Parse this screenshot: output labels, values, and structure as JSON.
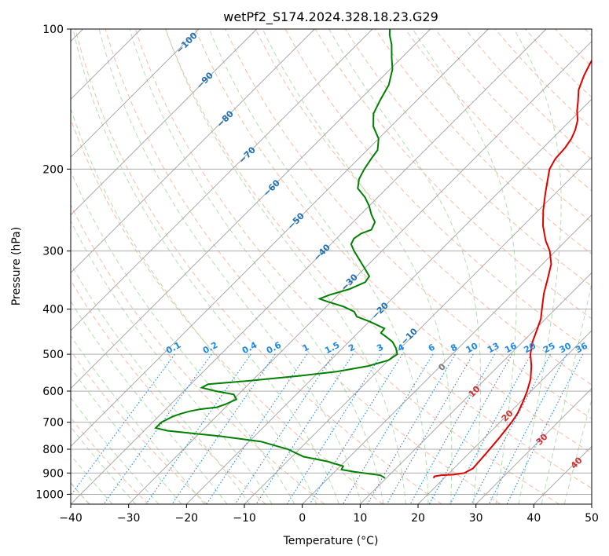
{
  "chart_data": {
    "type": "line",
    "title": "wetPf2_S174.2024.328.18.23.G29",
    "xlabel": "Temperature (°C)",
    "ylabel": "Pressure (hPa)",
    "xlim": [
      -40,
      50
    ],
    "ylim": [
      1050,
      100
    ],
    "y_scale": "log",
    "x_ticks": [
      -40,
      -30,
      -20,
      -10,
      0,
      10,
      20,
      30,
      40,
      50
    ],
    "x_tick_labels": [
      "−40",
      "−30",
      "−20",
      "−10",
      "0",
      "10",
      "20",
      "30",
      "40",
      "50"
    ],
    "y_ticks": [
      1000,
      900,
      800,
      700,
      600,
      500,
      400,
      300,
      200,
      100
    ],
    "y_tick_labels": [
      "1000",
      "900",
      "800",
      "700",
      "600",
      "500",
      "400",
      "300",
      "200",
      "100"
    ],
    "grid": true,
    "skew_degrees": 45,
    "series": [
      {
        "kind": "temperature",
        "color": "#e00000",
        "points": [
          [
            18.2,
            923
          ],
          [
            18.0,
            915
          ],
          [
            19.0,
            910
          ],
          [
            21.0,
            907
          ],
          [
            22.6,
            900
          ],
          [
            23.3,
            880
          ],
          [
            23.0,
            820
          ],
          [
            22.6,
            760
          ],
          [
            22.0,
            700
          ],
          [
            21.5,
            670
          ],
          [
            20.5,
            635
          ],
          [
            19.3,
            600
          ],
          [
            17.8,
            565
          ],
          [
            15.7,
            530
          ],
          [
            13.5,
            500
          ],
          [
            11.7,
            470
          ],
          [
            10.5,
            445
          ],
          [
            9.2,
            420
          ],
          [
            7.3,
            395
          ],
          [
            5.3,
            370
          ],
          [
            3.5,
            345
          ],
          [
            1.5,
            320
          ],
          [
            -1.0,
            300
          ],
          [
            -3.5,
            285
          ],
          [
            -6.5,
            265
          ],
          [
            -9.2,
            245
          ],
          [
            -11.8,
            225
          ],
          [
            -13.8,
            210
          ],
          [
            -15.2,
            200
          ],
          [
            -16.0,
            190
          ],
          [
            -16.2,
            180
          ],
          [
            -16.7,
            172
          ],
          [
            -17.5,
            165
          ],
          [
            -18.8,
            157
          ],
          [
            -20.5,
            150
          ],
          [
            -22.0,
            143
          ],
          [
            -23.9,
            135
          ],
          [
            -25.4,
            126
          ],
          [
            -26.4,
            119
          ],
          [
            -27.2,
            113
          ],
          [
            -28.2,
            109
          ],
          [
            -29.5,
            105
          ],
          [
            -30.7,
            102
          ],
          [
            -31.5,
            100
          ]
        ]
      },
      {
        "kind": "dewpoint",
        "color": "#008000",
        "points": [
          [
            9.8,
            923
          ],
          [
            8.5,
            910
          ],
          [
            3.5,
            895
          ],
          [
            0.8,
            885
          ],
          [
            0.5,
            870
          ],
          [
            -3.0,
            850
          ],
          [
            -8.0,
            830
          ],
          [
            -12.0,
            800
          ],
          [
            -18.0,
            770
          ],
          [
            -26.0,
            750
          ],
          [
            -36.0,
            730
          ],
          [
            -38.5,
            720
          ],
          [
            -38.5,
            710
          ],
          [
            -38.5,
            700
          ],
          [
            -38.0,
            690
          ],
          [
            -37.5,
            680
          ],
          [
            -36.5,
            670
          ],
          [
            -35.5,
            663
          ],
          [
            -34.0,
            656
          ],
          [
            -31.5,
            650
          ],
          [
            -30.5,
            640
          ],
          [
            -29.5,
            625
          ],
          [
            -30.8,
            610
          ],
          [
            -34.5,
            600
          ],
          [
            -37.5,
            590
          ],
          [
            -37.0,
            580
          ],
          [
            -30.5,
            570
          ],
          [
            -23.0,
            557
          ],
          [
            -17.0,
            545
          ],
          [
            -12.5,
            530
          ],
          [
            -10.0,
            515
          ],
          [
            -9.5,
            500
          ],
          [
            -10.8,
            485
          ],
          [
            -12.5,
            470
          ],
          [
            -14.2,
            460
          ],
          [
            -16.0,
            450
          ],
          [
            -16.2,
            440
          ],
          [
            -20.0,
            425
          ],
          [
            -23.0,
            415
          ],
          [
            -24.3,
            405
          ],
          [
            -27.0,
            395
          ],
          [
            -30.8,
            385
          ],
          [
            -32.5,
            380
          ],
          [
            -31.5,
            373
          ],
          [
            -29.0,
            362
          ],
          [
            -27.5,
            350
          ],
          [
            -27.8,
            340
          ],
          [
            -30.3,
            325
          ],
          [
            -34.8,
            300
          ],
          [
            -36.5,
            290
          ],
          [
            -37.0,
            282
          ],
          [
            -36.6,
            275
          ],
          [
            -35.5,
            270
          ],
          [
            -36.2,
            260
          ],
          [
            -38.2,
            250
          ],
          [
            -40.0,
            240
          ],
          [
            -42.2,
            230
          ],
          [
            -45.0,
            220
          ],
          [
            -46.4,
            210
          ],
          [
            -47.2,
            200
          ],
          [
            -47.8,
            190
          ],
          [
            -48.2,
            182
          ],
          [
            -50.0,
            172
          ],
          [
            -53.0,
            162
          ],
          [
            -55.2,
            152
          ],
          [
            -56.4,
            142
          ],
          [
            -57.5,
            132
          ],
          [
            -59.6,
            122
          ],
          [
            -61.8,
            115
          ],
          [
            -64.0,
            108
          ],
          [
            -66.0,
            103
          ],
          [
            -67.0,
            100
          ]
        ]
      }
    ],
    "dry_adiabat_labels": [
      "−100",
      "−90",
      "−80",
      "−70",
      "−60",
      "−50",
      "−40",
      "−30",
      "−20",
      "−10",
      "0",
      "10",
      "20",
      "30",
      "40"
    ],
    "mixing_ratio_labels": [
      "0.1",
      "0.2",
      "0.4",
      "0.6",
      "1",
      "1.5",
      "2",
      "3",
      "4",
      "6",
      "8",
      "10",
      "13",
      "16",
      "20",
      "25",
      "30",
      "36"
    ],
    "colors": {
      "dry_adiabat": "#f4a582",
      "moist_adiabat": "#a6d8a0",
      "mixing_ratio": "#1e88e5",
      "isotherm": "#a0a0a0",
      "isotherm_label": "#1f6fb5",
      "adiabat_label": "#d32f2f",
      "zero_label": "#7a7a7a"
    }
  }
}
